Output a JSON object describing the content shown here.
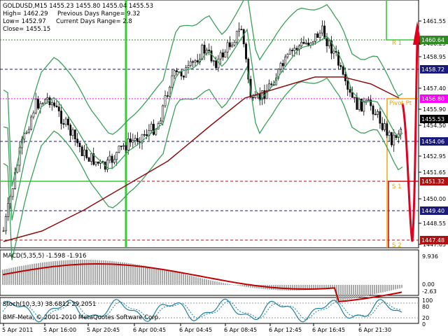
{
  "header": {
    "symbol_line": "GOLDUSD,M15  1455.23 1455.80 1455.04 1455.53",
    "high": "High= 1462.29",
    "low": "Low= 1452.97",
    "close": "Close= 1455.15",
    "prev_range": "Previous Days Range= 9.32",
    "curr_range": "Current Days Range= 2.8"
  },
  "price_axis": [
    "1461.55",
    "1460.25",
    "1458.95",
    "1457.40",
    "1455.90",
    "1454.50",
    "1452.95",
    "1451.65",
    "1450.00",
    "1448.55",
    "1447.05"
  ],
  "price_labels": [
    {
      "text": "1460.64",
      "bg": "#2e8b22",
      "fg": "#ffffff"
    },
    {
      "text": "1458.72",
      "bg": "#1a1a7a",
      "fg": "#ffffff"
    },
    {
      "text": "1456.80",
      "bg": "#ff00ff",
      "fg": "#ffffff"
    },
    {
      "text": "1455.53",
      "bg": "#000000",
      "fg": "#ffffff"
    },
    {
      "text": "1454.06",
      "bg": "#1a1a7a",
      "fg": "#ffffff"
    },
    {
      "text": "1451.32",
      "bg": "#b01010",
      "fg": "#ffffff"
    },
    {
      "text": "1449.40",
      "bg": "#1a1a7a",
      "fg": "#ffffff"
    },
    {
      "text": "1447.48",
      "bg": "#b01010",
      "fg": "#ffffff"
    }
  ],
  "level_tags": {
    "r1": "R 1",
    "pivot": "Pivot Pt",
    "s1": "S 1",
    "s2": "S 2"
  },
  "macd": {
    "label": "MACD(5,35,5)  -1.598 -1.916",
    "axis": [
      "9.936",
      "0.00",
      "-2.63"
    ]
  },
  "stoch": {
    "label": "Stoch(10,3,3) 38.6812 29.2051",
    "axis": [
      "100",
      "80",
      "20",
      "0"
    ]
  },
  "copyright": "BMF-Meta, © 2001-2010 MetaQuotes Software Corp.",
  "time_axis": [
    "5 Apr 2011",
    "5 Apr 16:00",
    "5 Apr 20:45",
    "6 Apr 00:45",
    "6 Apr 04:45",
    "6 Apr 08:45",
    "6 Apr 12:45",
    "6 Apr 16:45",
    "6 Apr 21:30"
  ],
  "colors": {
    "bands": "#3aa05a",
    "ma": "#8b1010",
    "macd_signal": "#c00000",
    "stoch": "#2080a0",
    "pivot_orange": "#f0a000",
    "arrow": "#e00020"
  }
}
